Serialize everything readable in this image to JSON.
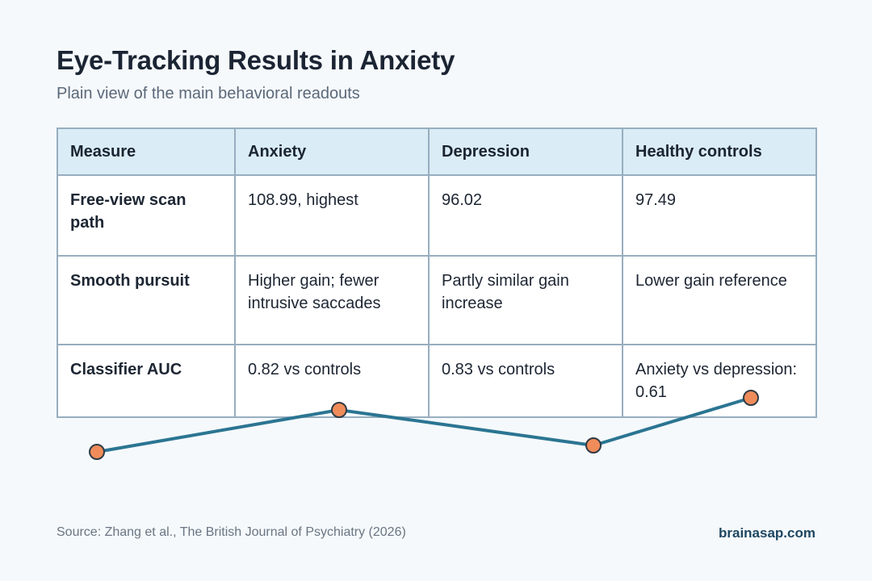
{
  "header": {
    "title": "Eye-Tracking Results in Anxiety",
    "subtitle": "Plain view of the main behavioral readouts"
  },
  "table": {
    "columns": [
      "Measure",
      "Anxiety",
      "Depression",
      "Healthy controls"
    ],
    "rows": [
      {
        "measure": "Free-view scan path",
        "anxiety": "108.99, highest",
        "depression": "96.02",
        "controls": "97.49"
      },
      {
        "measure": "Smooth pursuit",
        "anxiety": "Higher gain; fewer intrusive saccades",
        "depression": "Partly similar gain increase",
        "controls": "Lower gain reference"
      },
      {
        "measure": "Classifier AUC",
        "anxiety": "0.82 vs controls",
        "depression": "0.83 vs controls",
        "controls": "Anxiety vs depression: 0.61"
      }
    ]
  },
  "decorative_line": {
    "point_count": 4,
    "line_color": "#2b7592",
    "marker_color": "#f08c5a",
    "marker_stroke": "#2f3b45"
  },
  "footer": {
    "source": "Source: Zhang et al., The British Journal of Psychiatry (2026)",
    "brand": "brainasap.com"
  },
  "colors": {
    "background": "#f5f9fc",
    "header_fill": "#daecf5",
    "border": "#97aebf",
    "brand": "#1e4660"
  }
}
